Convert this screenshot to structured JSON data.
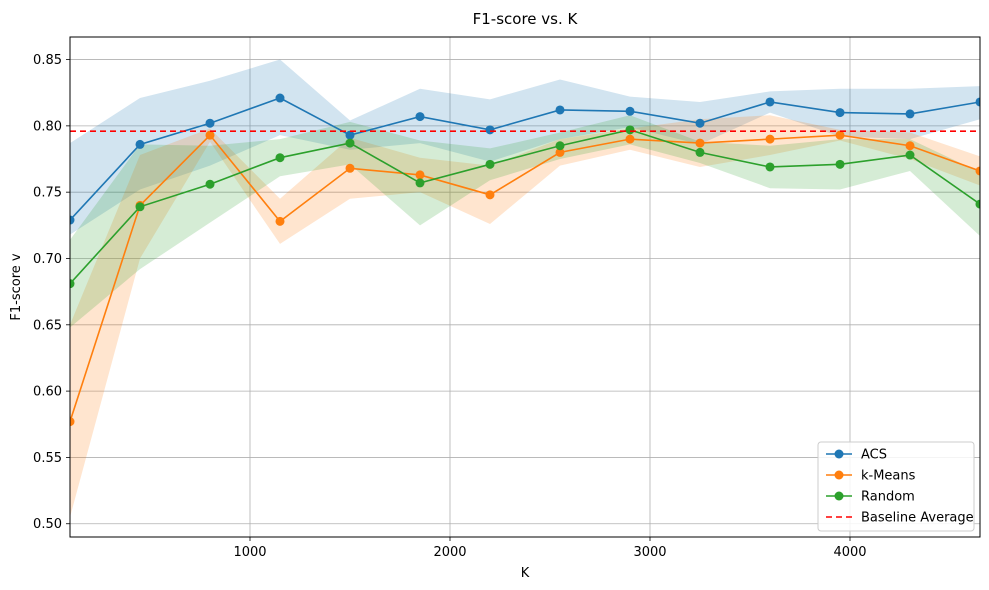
{
  "chart_data": {
    "type": "line",
    "title": "F1-score vs. K",
    "xlabel": "K",
    "ylabel": "F1-score v",
    "xlim": [
      100,
      4650
    ],
    "ylim": [
      0.49,
      0.867
    ],
    "xticks": [
      1000,
      2000,
      3000,
      4000
    ],
    "yticks": [
      0.5,
      0.55,
      0.6,
      0.65,
      0.7,
      0.75,
      0.8,
      0.85
    ],
    "grid": true,
    "legend_position": "lower-right",
    "x": [
      100,
      450,
      800,
      1150,
      1500,
      1850,
      2200,
      2550,
      2900,
      3250,
      3600,
      3950,
      4300,
      4650
    ],
    "series": [
      {
        "name": "ACS",
        "color": "#1f77b4",
        "values": [
          0.729,
          0.786,
          0.802,
          0.821,
          0.793,
          0.807,
          0.797,
          0.812,
          0.811,
          0.802,
          0.818,
          0.81,
          0.809,
          0.818
        ],
        "band_low": [
          0.718,
          0.752,
          0.77,
          0.793,
          0.782,
          0.787,
          0.773,
          0.79,
          0.799,
          0.786,
          0.81,
          0.792,
          0.79,
          0.805
        ],
        "band_high": [
          0.787,
          0.821,
          0.834,
          0.85,
          0.804,
          0.828,
          0.82,
          0.835,
          0.822,
          0.818,
          0.826,
          0.828,
          0.828,
          0.83
        ]
      },
      {
        "name": "k-Means",
        "color": "#ff7f0e",
        "values": [
          0.577,
          0.74,
          0.793,
          0.728,
          0.768,
          0.763,
          0.748,
          0.78,
          0.79,
          0.787,
          0.79,
          0.793,
          0.785,
          0.766
        ],
        "band_low": [
          0.505,
          0.7,
          0.788,
          0.711,
          0.745,
          0.75,
          0.726,
          0.77,
          0.782,
          0.769,
          0.778,
          0.789,
          0.775,
          0.755
        ],
        "band_high": [
          0.65,
          0.778,
          0.798,
          0.745,
          0.791,
          0.776,
          0.77,
          0.79,
          0.798,
          0.805,
          0.808,
          0.797,
          0.795,
          0.777
        ]
      },
      {
        "name": "Random",
        "color": "#2ca02c",
        "values": [
          0.681,
          0.739,
          0.756,
          0.776,
          0.787,
          0.757,
          0.771,
          0.785,
          0.797,
          0.78,
          0.769,
          0.771,
          0.778,
          0.741
        ],
        "band_low": [
          0.648,
          0.692,
          0.727,
          0.762,
          0.771,
          0.725,
          0.759,
          0.775,
          0.786,
          0.772,
          0.753,
          0.752,
          0.766,
          0.717
        ],
        "band_high": [
          0.714,
          0.786,
          0.785,
          0.79,
          0.803,
          0.789,
          0.783,
          0.795,
          0.808,
          0.788,
          0.785,
          0.79,
          0.79,
          0.765
        ]
      }
    ],
    "reference_line": {
      "name": "Baseline Average",
      "color": "#ff0000",
      "style": "dashed",
      "y": 0.796
    }
  }
}
